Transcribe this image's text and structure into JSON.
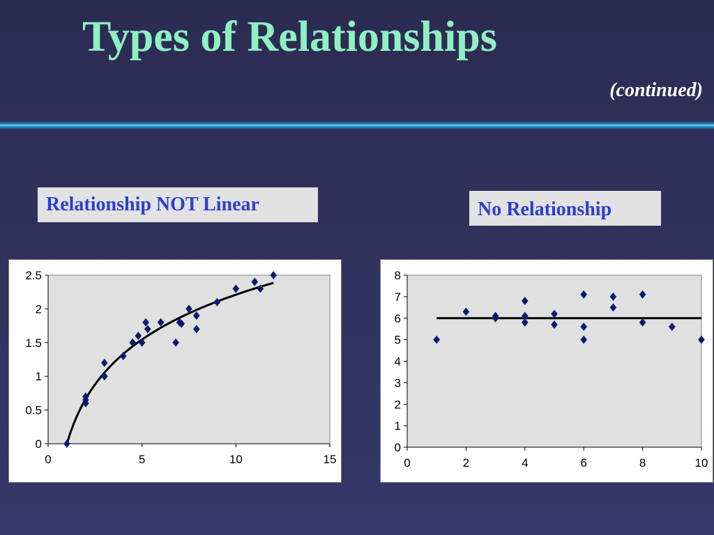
{
  "slide": {
    "title": "Types of Relationships",
    "subtitle": "(continued)",
    "colors": {
      "background": "#2f2f5a",
      "title": "#8ff0c2",
      "label_text": "#2a3fd0",
      "marker": "#0a1a6e",
      "plot_area": "#e0e0e0"
    }
  },
  "labels": {
    "left": "Relationship NOT Linear",
    "right": "No Relationship"
  },
  "chart_data": [
    {
      "type": "scatter",
      "title": "",
      "xlabel": "",
      "ylabel": "",
      "xlim": [
        0,
        15
      ],
      "ylim": [
        0,
        2.5
      ],
      "x_ticks": [
        0,
        5,
        10,
        15
      ],
      "y_ticks": [
        0,
        0.5,
        1,
        1.5,
        2,
        2.5
      ],
      "x_tick_labels": [
        "0",
        "5",
        "10",
        "15"
      ],
      "y_tick_labels": [
        "0",
        "0.5",
        "1",
        "1.5",
        "2",
        "2.5"
      ],
      "grid": false,
      "points": [
        [
          1,
          0
        ],
        [
          2,
          0.6
        ],
        [
          2,
          0.65
        ],
        [
          2,
          0.7
        ],
        [
          3,
          1.2
        ],
        [
          3,
          1.0
        ],
        [
          4,
          1.3
        ],
        [
          4.5,
          1.5
        ],
        [
          4.8,
          1.6
        ],
        [
          5,
          1.5
        ],
        [
          5.2,
          1.8
        ],
        [
          5.3,
          1.7
        ],
        [
          6,
          1.8
        ],
        [
          6.8,
          1.5
        ],
        [
          7,
          1.8
        ],
        [
          7.1,
          1.78
        ],
        [
          7.5,
          2.0
        ],
        [
          7.9,
          1.7
        ],
        [
          7.9,
          1.9
        ],
        [
          9,
          2.1
        ],
        [
          10,
          2.3
        ],
        [
          11,
          2.4
        ],
        [
          11.3,
          2.3
        ],
        [
          12,
          2.5
        ]
      ],
      "trendline": {
        "type": "logarithmic",
        "from": 1,
        "to": 12,
        "coef": 0.96
      }
    },
    {
      "type": "scatter",
      "title": "",
      "xlabel": "",
      "ylabel": "",
      "xlim": [
        0,
        10
      ],
      "ylim": [
        0,
        8
      ],
      "x_ticks": [
        0,
        2,
        4,
        6,
        8,
        10
      ],
      "y_ticks": [
        0,
        1,
        2,
        3,
        4,
        5,
        6,
        7,
        8
      ],
      "x_tick_labels": [
        "0",
        "2",
        "4",
        "6",
        "8",
        "10"
      ],
      "y_tick_labels": [
        "0",
        "1",
        "2",
        "3",
        "4",
        "5",
        "6",
        "7",
        "8"
      ],
      "grid": false,
      "points": [
        [
          1,
          5
        ],
        [
          2,
          6.3
        ],
        [
          3,
          6.1
        ],
        [
          3,
          6.0
        ],
        [
          4,
          6.8
        ],
        [
          4,
          6.1
        ],
        [
          4,
          5.8
        ],
        [
          5,
          6.2
        ],
        [
          5,
          5.7
        ],
        [
          6,
          7.1
        ],
        [
          6,
          5.6
        ],
        [
          6,
          5.0
        ],
        [
          7,
          7.0
        ],
        [
          7,
          6.5
        ],
        [
          8,
          7.1
        ],
        [
          8,
          5.8
        ],
        [
          9,
          5.6
        ],
        [
          10,
          5.0
        ]
      ],
      "trendline": {
        "type": "constant",
        "from": 1,
        "to": 10,
        "value": 6.0
      }
    }
  ]
}
